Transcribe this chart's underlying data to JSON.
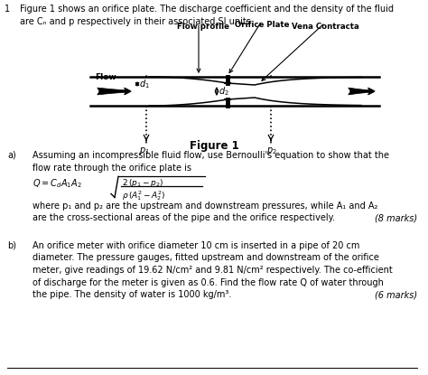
{
  "question_number": "1",
  "header_line1": "Figure 1 shows an orifice plate. The discharge coefficient and the density of the fluid",
  "header_line2": "are Cₙ and p respectively in their associated SI units.",
  "figure_label": "Figure 1",
  "part_a_label": "a)",
  "part_a_line1": "Assuming an incompressible fluid flow, use Bernoulli's equation to show that the",
  "part_a_line2": "flow rate through the orifice plate is",
  "part_a_where1": "where p₁ and p₂ are the upstream and downstream pressures, while A₁ and A₂",
  "part_a_where2": "are the cross-sectional areas of the pipe and the orifice respectively.",
  "part_a_marks": "(8 marks)",
  "part_b_label": "b)",
  "part_b_line1": "An orifice meter with orifice diameter 10 cm is inserted in a pipe of 20 cm",
  "part_b_line2": "diameter. The pressure gauges, fitted upstream and downstream of the orifice",
  "part_b_line3": "meter, give readings of 19.62 N/cm² and 9.81 N/cm² respectively. The co-efficient",
  "part_b_line4": "of discharge for the meter is given as 0.6. Find the flow rate Q of water through",
  "part_b_line5": "the pipe. The density of water is 1000 kg/m³.",
  "part_b_marks": "(6 marks)",
  "bg_color": "#ffffff",
  "text_color": "#000000"
}
